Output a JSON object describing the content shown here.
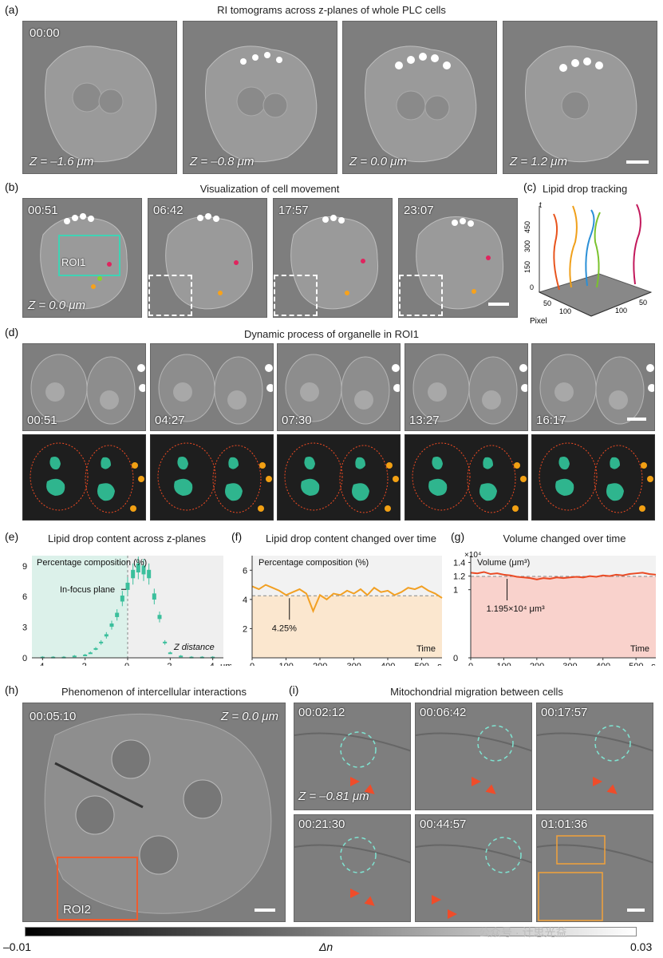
{
  "panel_a": {
    "label": "(a)",
    "title": "RI tomograms across z-planes of whole PLC cells",
    "time": "00:00",
    "tiles": [
      {
        "z": "Z = –1.6 μm"
      },
      {
        "z": "Z = –0.8 μm"
      },
      {
        "z": "Z = 0.0 μm"
      },
      {
        "z": "Z = 1.2 μm"
      }
    ]
  },
  "panel_b": {
    "label": "(b)",
    "title": "Visualization of cell movement",
    "roi": "ROI1",
    "z": "Z = 0.0 μm",
    "tiles": [
      {
        "time": "00:51"
      },
      {
        "time": "06:42"
      },
      {
        "time": "17:57"
      },
      {
        "time": "23:07"
      }
    ]
  },
  "panel_c": {
    "label": "(c)",
    "title": "Lipid drop tracking",
    "axis_t": "t",
    "axis_pixel": "Pixel",
    "t_ticks": [
      "450",
      "300",
      "150",
      "0"
    ],
    "pixel_ticks": [
      "50",
      "100"
    ],
    "pixel_ticks2": [
      "100",
      "50"
    ]
  },
  "panel_d": {
    "label": "(d)",
    "title": "Dynamic process of organelle in ROI1",
    "tiles": [
      {
        "time": "00:51"
      },
      {
        "time": "04:27"
      },
      {
        "time": "07:30"
      },
      {
        "time": "13:27"
      },
      {
        "time": "16:17"
      }
    ]
  },
  "panel_e": {
    "label": "(e)",
    "title": "Lipid drop content across z-planes",
    "ylabel": "Percentage composition (%)",
    "annotation": "In-focus plane",
    "xlabel": "Z distance",
    "xunit": "μm",
    "xticks": [
      "4",
      "2",
      "0",
      "2",
      "4"
    ],
    "yticks": [
      "9",
      "6",
      "3",
      "0"
    ]
  },
  "panel_f": {
    "label": "(f)",
    "title": "Lipid drop content changed over time",
    "ylabel": "Percentage composition (%)",
    "annotation": "4.25%",
    "xlabel": "Time",
    "xunit": "s",
    "xticks": [
      "0",
      "100",
      "200",
      "300",
      "400",
      "500"
    ],
    "yticks": [
      "6",
      "4",
      "2"
    ]
  },
  "panel_g": {
    "label": "(g)",
    "title": "Volume changed over time",
    "ylabel": "Volume (μm³)",
    "exponent": "×10⁴",
    "annotation": "1.195×10⁴ μm³",
    "xlabel": "Time",
    "xunit": "s",
    "xticks": [
      "0",
      "100",
      "200",
      "300",
      "400",
      "500"
    ],
    "yticks": [
      "1.4",
      "1.2",
      "1",
      "0"
    ]
  },
  "panel_h": {
    "label": "(h)",
    "title": "Phenomenon of intercellular interactions",
    "time": "00:05:10",
    "z": "Z = 0.0 μm",
    "roi": "ROI2"
  },
  "panel_i": {
    "label": "(i)",
    "title": "Mitochondrial migration between cells",
    "z": "Z = –0.81 μm",
    "tiles": [
      {
        "time": "00:02:12"
      },
      {
        "time": "00:06:42"
      },
      {
        "time": "00:17:57"
      },
      {
        "time": "00:21:30"
      },
      {
        "time": "00:44:57"
      },
      {
        "time": "01:01:36"
      }
    ]
  },
  "colorbar": {
    "min": "–0.01",
    "label": "Δn",
    "max": "0.03"
  },
  "watermark": "公众号 · 计思光益",
  "chart_data": [
    {
      "type": "bar",
      "title": "Lipid drop content across z-planes",
      "ylabel": "Percentage composition (%)",
      "xlabel": "Z distance",
      "ylim": [
        0,
        10
      ],
      "xlim": [
        -4.5,
        4.5
      ],
      "x": [
        -4,
        -3.5,
        -3,
        -2.5,
        -2,
        -1.75,
        -1.5,
        -1.25,
        -1,
        -0.75,
        -0.5,
        -0.25,
        0,
        0.25,
        0.5,
        0.75,
        1,
        1.25,
        1.5,
        1.75,
        2,
        2.5,
        3,
        3.5,
        4
      ],
      "values": [
        0.1,
        0.1,
        0.1,
        0.2,
        0.3,
        0.5,
        0.9,
        1.5,
        2.2,
        3.2,
        4.2,
        5.8,
        7.0,
        8.2,
        8.8,
        8.6,
        8.2,
        6.0,
        4.0,
        1.5,
        0.5,
        0.2,
        0.1,
        0.1,
        0.1
      ]
    },
    {
      "type": "line",
      "title": "Lipid drop content changed over time",
      "ylabel": "Percentage composition (%)",
      "xlabel": "Time",
      "ylim": [
        0,
        7
      ],
      "xlim": [
        0,
        560
      ],
      "reference": 4.25,
      "x": [
        0,
        20,
        40,
        60,
        80,
        100,
        120,
        140,
        160,
        180,
        200,
        220,
        240,
        260,
        280,
        300,
        320,
        340,
        360,
        380,
        400,
        420,
        440,
        460,
        480,
        500,
        520,
        540,
        560
      ],
      "values": [
        4.9,
        4.7,
        5.0,
        4.8,
        4.6,
        4.3,
        4.5,
        4.7,
        4.4,
        3.2,
        4.3,
        4.0,
        4.4,
        4.3,
        4.6,
        4.4,
        4.7,
        4.3,
        4.8,
        4.5,
        4.6,
        4.3,
        4.5,
        4.8,
        4.7,
        4.9,
        4.6,
        4.4,
        4.1
      ]
    },
    {
      "type": "line",
      "title": "Volume changed over time",
      "ylabel": "Volume (μm³)",
      "xlabel": "Time",
      "ylim": [
        0,
        1.5
      ],
      "xlim": [
        0,
        560
      ],
      "reference": 1.195,
      "x": [
        0,
        20,
        40,
        60,
        80,
        100,
        120,
        140,
        160,
        180,
        200,
        220,
        240,
        260,
        280,
        300,
        320,
        340,
        360,
        380,
        400,
        420,
        440,
        460,
        480,
        500,
        520,
        540,
        560
      ],
      "values": [
        1.25,
        1.24,
        1.26,
        1.23,
        1.24,
        1.22,
        1.21,
        1.19,
        1.18,
        1.17,
        1.15,
        1.17,
        1.16,
        1.18,
        1.17,
        1.18,
        1.19,
        1.18,
        1.2,
        1.19,
        1.21,
        1.2,
        1.22,
        1.21,
        1.23,
        1.24,
        1.25,
        1.23,
        1.22
      ]
    }
  ]
}
